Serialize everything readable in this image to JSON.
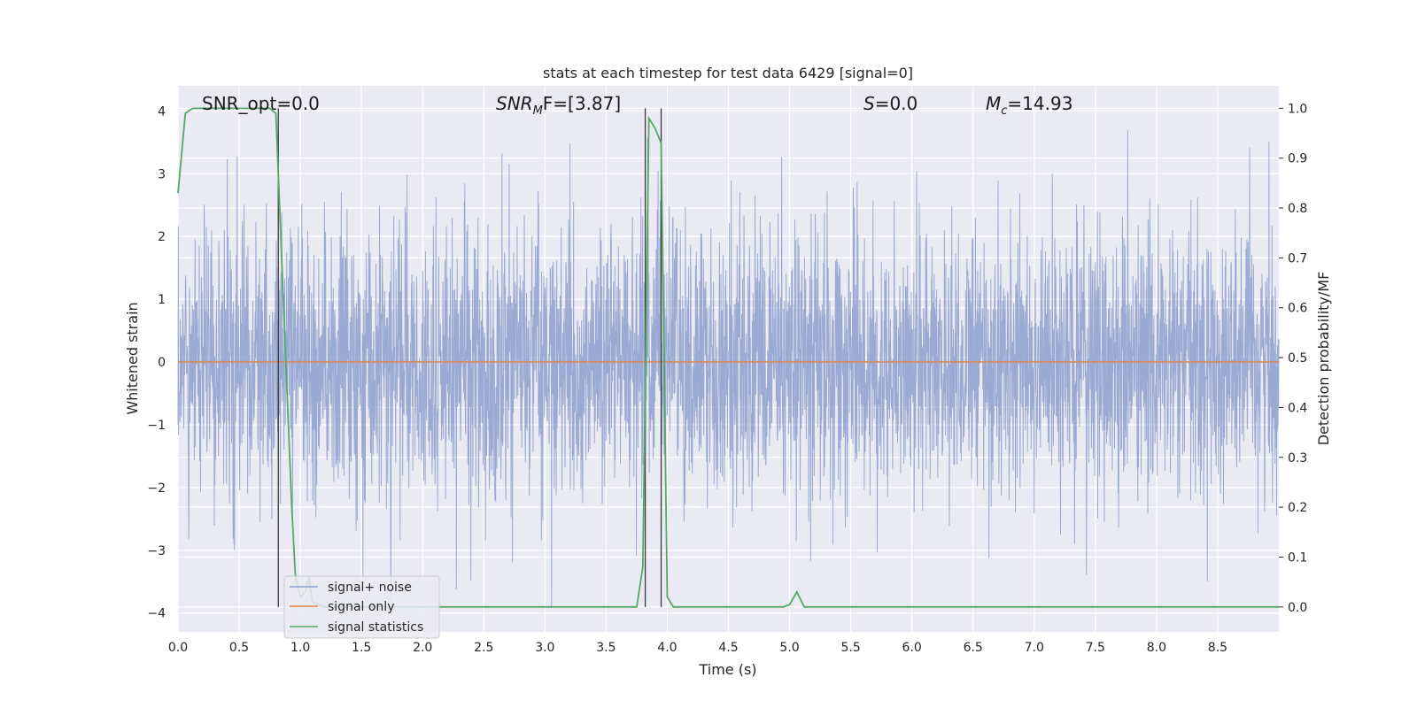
{
  "chart_data": {
    "type": "line",
    "title": "stats at each timestep for test data 6429 [signal=0]",
    "xlabel": "Time (s)",
    "ylabel_left": "Whitened strain",
    "ylabel_right": "Detection probability/MF",
    "xlim": [
      0.0,
      9.0
    ],
    "ylim_left": [
      -4.3,
      4.4
    ],
    "ylim_right": [
      -0.05,
      1.045
    ],
    "x_ticks": [
      "0.0",
      "0.5",
      "1.0",
      "1.5",
      "2.0",
      "2.5",
      "3.0",
      "3.5",
      "4.0",
      "4.5",
      "5.0",
      "5.5",
      "6.0",
      "6.5",
      "7.0",
      "7.5",
      "8.0",
      "8.5"
    ],
    "y_left_ticks": [
      "−4",
      "−3",
      "−2",
      "−1",
      "0",
      "1",
      "2",
      "3",
      "4"
    ],
    "y_right_ticks": [
      "0.0",
      "0.1",
      "0.2",
      "0.3",
      "0.4",
      "0.5",
      "0.6",
      "0.7",
      "0.8",
      "0.9",
      "1.0"
    ],
    "grid": true,
    "legend_position": "lower-left",
    "annotations": {
      "snr_opt": "SNR_opt=0.0",
      "snr_mf_main": "SNR",
      "snr_mf_sub": "M",
      "snr_mf_rest": "F=[3.87]",
      "s_main": "S",
      "s_rest": "=0.0",
      "mc_main": "M",
      "mc_sub": "c",
      "mc_rest": "=14.93"
    },
    "vertical_markers_x": [
      0.82,
      3.82,
      3.95
    ],
    "series": [
      {
        "name": "signal+ noise",
        "color": "#8c9fcc",
        "axis": "left",
        "description_of_values": "whitened noise, roughly within ±2.5 with spikes to ±4",
        "envelope_core": [
          -1.5,
          1.6
        ],
        "extremes": [
          -3.9,
          4.0
        ]
      },
      {
        "name": "signal only",
        "color": "#dd8452",
        "axis": "left",
        "x": [
          0.0,
          9.0
        ],
        "y": [
          0.0,
          0.0
        ]
      },
      {
        "name": "signal statistics",
        "color": "#55a868",
        "axis": "right",
        "x": [
          0.0,
          0.06,
          0.12,
          0.2,
          0.5,
          0.75,
          0.8,
          0.88,
          0.93,
          0.96,
          1.0,
          1.04,
          1.07,
          1.1,
          1.2,
          2.0,
          3.0,
          3.5,
          3.75,
          3.8,
          3.85,
          3.9,
          3.95,
          4.0,
          4.05,
          4.5,
          4.95,
          5.0,
          5.06,
          5.12,
          5.5,
          6.0,
          7.0,
          8.0,
          9.0
        ],
        "y": [
          0.83,
          0.99,
          1.0,
          1.0,
          1.0,
          1.0,
          0.99,
          0.5,
          0.2,
          0.06,
          0.02,
          0.03,
          0.06,
          0.01,
          0.0,
          0.0,
          0.0,
          0.0,
          0.0,
          0.08,
          0.98,
          0.96,
          0.93,
          0.02,
          0.0,
          0.0,
          0.0,
          0.005,
          0.03,
          0.0,
          0.0,
          0.0,
          0.0,
          0.0,
          0.0
        ]
      }
    ]
  }
}
